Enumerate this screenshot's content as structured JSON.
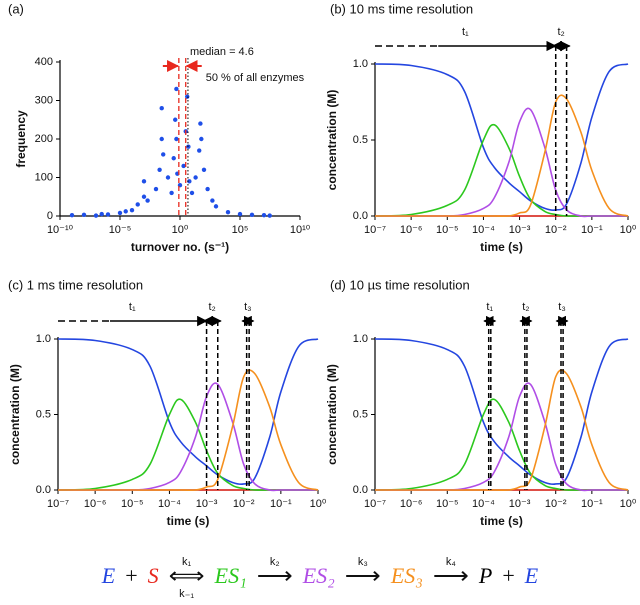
{
  "chart_data": [
    {
      "type": "scatter",
      "title": "(a)",
      "xlabel": "turnover no. (s⁻¹)",
      "ylabel": "frequency",
      "xscale": "log",
      "color": "#1f4fe8",
      "xlim": [
        1e-10,
        10000000000.0
      ],
      "ylim": [
        0,
        400
      ],
      "xticks": [
        {
          "value": 1e-10,
          "label": "10⁻¹⁰"
        },
        {
          "value": 1e-05,
          "label": "10⁻⁵"
        },
        {
          "value": 1,
          "label": "10⁰"
        },
        {
          "value": 100000.0,
          "label": "10⁵"
        },
        {
          "value": 10000000000.0,
          "label": "10¹⁰"
        }
      ],
      "yticks": [
        0,
        100,
        200,
        300,
        400
      ],
      "x": [
        1e-09,
        1e-08,
        1e-07,
        3e-07,
        1e-06,
        1e-05,
        3e-05,
        0.0001,
        0.0003,
        0.001,
        0.001,
        0.002,
        0.01,
        0.02,
        0.03,
        0.03,
        0.04,
        0.1,
        0.2,
        0.3,
        0.4,
        0.5,
        0.5,
        0.6,
        1,
        2,
        3,
        4,
        5,
        6,
        10,
        20,
        40,
        50,
        60,
        100,
        200,
        500,
        1000,
        10000.0,
        100000.0,
        1000000.0,
        10000000.0,
        30000000.0
      ],
      "values": [
        2,
        3,
        1,
        5,
        4,
        8,
        12,
        15,
        30,
        50,
        90,
        40,
        70,
        120,
        200,
        280,
        160,
        100,
        60,
        150,
        250,
        330,
        200,
        110,
        80,
        130,
        220,
        310,
        180,
        90,
        60,
        100,
        170,
        240,
        200,
        120,
        70,
        40,
        25,
        10,
        5,
        3,
        2,
        1
      ],
      "median": {
        "label": "median = 4.6",
        "value": 4.6
      },
      "range": {
        "label": "50 % of all enzymes",
        "from": 0.8,
        "to": 3,
        "color": "#e8281e"
      }
    },
    {
      "type": "line",
      "title": "(b) 10 ms time resolution",
      "xlabel": "time (s)",
      "ylabel": "concentration (M)",
      "xscale": "log",
      "xlim": [
        1e-07,
        1
      ],
      "ylim": [
        0,
        1
      ],
      "xticks": [
        {
          "value": 1e-07,
          "label": "10⁻⁷"
        },
        {
          "value": 1e-06,
          "label": "10⁻⁶"
        },
        {
          "value": 1e-05,
          "label": "10⁻⁵"
        },
        {
          "value": 0.0001,
          "label": "10⁻⁴"
        },
        {
          "value": 0.001,
          "label": "10⁻³"
        },
        {
          "value": 0.01,
          "label": "10⁻²"
        },
        {
          "value": 0.1,
          "label": "10⁻¹"
        },
        {
          "value": 1,
          "label": "10⁰"
        }
      ],
      "yticks": [
        {
          "value": 0,
          "label": "0.0"
        },
        {
          "value": 0.5,
          "label": "0.5"
        },
        {
          "value": 1,
          "label": "1.0"
        }
      ],
      "x": [
        1e-07,
        1e-06,
        1e-05,
        3e-05,
        0.0001,
        0.0002,
        0.0005,
        0.001,
        0.002,
        0.005,
        0.01,
        0.02,
        0.05,
        0.1,
        0.3,
        1
      ],
      "series": [
        {
          "color": "#e8281e",
          "values": [
            0,
            0,
            0,
            0,
            0,
            0,
            0,
            0,
            0,
            0,
            0,
            0,
            0,
            0,
            0,
            0
          ]
        },
        {
          "color": "#2446e0",
          "values": [
            1,
            0.99,
            0.93,
            0.82,
            0.45,
            0.32,
            0.22,
            0.16,
            0.1,
            0.05,
            0.04,
            0.08,
            0.35,
            0.65,
            0.95,
            1
          ]
        },
        {
          "color": "#2cc81e",
          "values": [
            0,
            0.01,
            0.07,
            0.17,
            0.5,
            0.6,
            0.45,
            0.26,
            0.11,
            0.03,
            0.01,
            0,
            0,
            0,
            0,
            0
          ]
        },
        {
          "color": "#b04ee6",
          "values": [
            0,
            0,
            0,
            0.01,
            0.05,
            0.12,
            0.35,
            0.62,
            0.7,
            0.45,
            0.17,
            0.04,
            0,
            0,
            0,
            0
          ]
        },
        {
          "color": "#f5901e",
          "values": [
            0,
            0,
            0,
            0,
            0,
            0,
            0,
            0.02,
            0.07,
            0.42,
            0.75,
            0.77,
            0.55,
            0.3,
            0.05,
            0
          ]
        }
      ],
      "intervals": [
        {
          "label": "t₁",
          "start": 1e-07,
          "end": 0.01
        },
        {
          "label": "t₂",
          "start": 0.01,
          "end": 0.02
        }
      ]
    },
    {
      "type": "line",
      "title": "(c) 1 ms time resolution",
      "xlabel": "time (s)",
      "ylabel": "concentration (M)",
      "xscale": "log",
      "xlim": [
        1e-07,
        1
      ],
      "ylim": [
        0,
        1
      ],
      "xticks": [
        {
          "value": 1e-07,
          "label": "10⁻⁷"
        },
        {
          "value": 1e-06,
          "label": "10⁻⁶"
        },
        {
          "value": 1e-05,
          "label": "10⁻⁵"
        },
        {
          "value": 0.0001,
          "label": "10⁻⁴"
        },
        {
          "value": 0.001,
          "label": "10⁻³"
        },
        {
          "value": 0.01,
          "label": "10⁻²"
        },
        {
          "value": 0.1,
          "label": "10⁻¹"
        },
        {
          "value": 1,
          "label": "10⁰"
        }
      ],
      "yticks": [
        {
          "value": 0,
          "label": "0.0"
        },
        {
          "value": 0.5,
          "label": "0.5"
        },
        {
          "value": 1,
          "label": "1.0"
        }
      ],
      "x": [
        1e-07,
        1e-06,
        1e-05,
        3e-05,
        0.0001,
        0.0002,
        0.0005,
        0.001,
        0.002,
        0.005,
        0.01,
        0.02,
        0.05,
        0.1,
        0.3,
        1
      ],
      "series": [
        {
          "color": "#e8281e",
          "values": [
            0,
            0,
            0,
            0,
            0,
            0,
            0,
            0,
            0,
            0,
            0,
            0,
            0,
            0,
            0,
            0
          ]
        },
        {
          "color": "#2446e0",
          "values": [
            1,
            0.99,
            0.93,
            0.82,
            0.45,
            0.32,
            0.22,
            0.16,
            0.1,
            0.05,
            0.04,
            0.08,
            0.35,
            0.65,
            0.95,
            1
          ]
        },
        {
          "color": "#2cc81e",
          "values": [
            0,
            0.01,
            0.07,
            0.17,
            0.5,
            0.6,
            0.45,
            0.26,
            0.11,
            0.03,
            0.01,
            0,
            0,
            0,
            0,
            0
          ]
        },
        {
          "color": "#b04ee6",
          "values": [
            0,
            0,
            0,
            0.01,
            0.05,
            0.12,
            0.35,
            0.62,
            0.7,
            0.45,
            0.17,
            0.04,
            0,
            0,
            0,
            0
          ]
        },
        {
          "color": "#f5901e",
          "values": [
            0,
            0,
            0,
            0,
            0,
            0,
            0,
            0.02,
            0.07,
            0.42,
            0.75,
            0.77,
            0.55,
            0.3,
            0.05,
            0
          ]
        }
      ],
      "intervals": [
        {
          "label": "t₁",
          "start": 1e-07,
          "end": 0.001
        },
        {
          "label": "t₂",
          "start": 0.001,
          "end": 0.002
        },
        {
          "label": "t₃",
          "start": 0.012,
          "end": 0.014
        }
      ]
    },
    {
      "type": "line",
      "title": "(d) 10 µs time resolution",
      "xlabel": "time (s)",
      "ylabel": "concentration (M)",
      "xscale": "log",
      "xlim": [
        1e-07,
        1
      ],
      "ylim": [
        0,
        1
      ],
      "xticks": [
        {
          "value": 1e-07,
          "label": "10⁻⁷"
        },
        {
          "value": 1e-06,
          "label": "10⁻⁶"
        },
        {
          "value": 1e-05,
          "label": "10⁻⁵"
        },
        {
          "value": 0.0001,
          "label": "10⁻⁴"
        },
        {
          "value": 0.001,
          "label": "10⁻³"
        },
        {
          "value": 0.01,
          "label": "10⁻²"
        },
        {
          "value": 0.1,
          "label": "10⁻¹"
        },
        {
          "value": 1,
          "label": "10⁰"
        }
      ],
      "yticks": [
        {
          "value": 0,
          "label": "0.0"
        },
        {
          "value": 0.5,
          "label": "0.5"
        },
        {
          "value": 1,
          "label": "1.0"
        }
      ],
      "x": [
        1e-07,
        1e-06,
        1e-05,
        3e-05,
        0.0001,
        0.0002,
        0.0005,
        0.001,
        0.002,
        0.005,
        0.01,
        0.02,
        0.05,
        0.1,
        0.3,
        1
      ],
      "series": [
        {
          "color": "#e8281e",
          "values": [
            0,
            0,
            0,
            0,
            0,
            0,
            0,
            0,
            0,
            0,
            0,
            0,
            0,
            0,
            0,
            0
          ]
        },
        {
          "color": "#2446e0",
          "values": [
            1,
            0.99,
            0.93,
            0.82,
            0.45,
            0.32,
            0.22,
            0.16,
            0.1,
            0.05,
            0.04,
            0.08,
            0.35,
            0.65,
            0.95,
            1
          ]
        },
        {
          "color": "#2cc81e",
          "values": [
            0,
            0.01,
            0.07,
            0.17,
            0.5,
            0.6,
            0.45,
            0.26,
            0.11,
            0.03,
            0.01,
            0,
            0,
            0,
            0,
            0
          ]
        },
        {
          "color": "#b04ee6",
          "values": [
            0,
            0,
            0,
            0.01,
            0.05,
            0.12,
            0.35,
            0.62,
            0.7,
            0.45,
            0.17,
            0.04,
            0,
            0,
            0,
            0
          ]
        },
        {
          "color": "#f5901e",
          "values": [
            0,
            0,
            0,
            0,
            0,
            0,
            0,
            0.02,
            0.07,
            0.42,
            0.75,
            0.77,
            0.55,
            0.3,
            0.05,
            0
          ]
        }
      ],
      "intervals": [
        {
          "label": "t₁",
          "start": 0.00014,
          "end": 0.00016
        },
        {
          "label": "t₂",
          "start": 0.0014,
          "end": 0.0016
        },
        {
          "label": "t₃",
          "start": 0.014,
          "end": 0.016
        }
      ]
    }
  ],
  "equation": [
    {
      "text": "E",
      "color": "#2446e0"
    },
    {
      "text": "+"
    },
    {
      "text": "S",
      "color": "#e8281e"
    },
    {
      "arrow": "⟺",
      "rates": [
        "k₁",
        "k₋₁"
      ]
    },
    {
      "text": "ES₁",
      "color": "#2cc81e"
    },
    {
      "arrow": "⟶",
      "rates": [
        "k₂"
      ]
    },
    {
      "text": "ES₂",
      "color": "#b04ee6"
    },
    {
      "arrow": "⟶",
      "rates": [
        "k₃"
      ]
    },
    {
      "text": "ES₃",
      "color": "#f5901e"
    },
    {
      "arrow": "⟶",
      "rates": [
        "k₄"
      ]
    },
    {
      "text": "P",
      "color": "#000000"
    },
    {
      "text": "+"
    },
    {
      "text": "E",
      "color": "#2446e0"
    }
  ]
}
